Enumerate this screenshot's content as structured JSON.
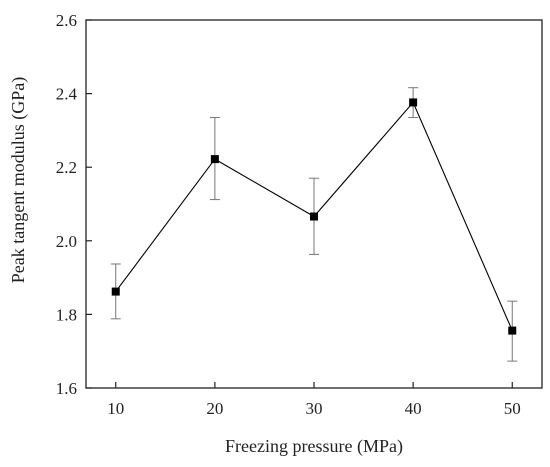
{
  "chart_data": {
    "type": "line",
    "xlabel": "Freezing pressure (MPa)",
    "ylabel": "Peak tangent modulus (GPa)",
    "xlim": [
      7,
      53
    ],
    "ylim": [
      1.6,
      2.6
    ],
    "xticks": [
      10,
      20,
      30,
      40,
      50
    ],
    "yticks": [
      1.6,
      1.8,
      2.0,
      2.2,
      2.4,
      2.6
    ],
    "xtick_labels": [
      "10",
      "20",
      "30",
      "40",
      "50"
    ],
    "ytick_labels": [
      "1.6",
      "1.8",
      "2.0",
      "2.2",
      "2.4",
      "2.6"
    ],
    "grid": false,
    "marker": "square",
    "color": "#000000",
    "series": [
      {
        "x": [
          10,
          20,
          30,
          40,
          50
        ],
        "y": [
          1.862,
          2.222,
          2.066,
          2.376,
          1.756
        ],
        "err_low": [
          1.788,
          2.112,
          1.963,
          2.335,
          1.673
        ],
        "err_high": [
          1.937,
          2.335,
          2.17,
          2.416,
          1.836
        ]
      }
    ]
  }
}
